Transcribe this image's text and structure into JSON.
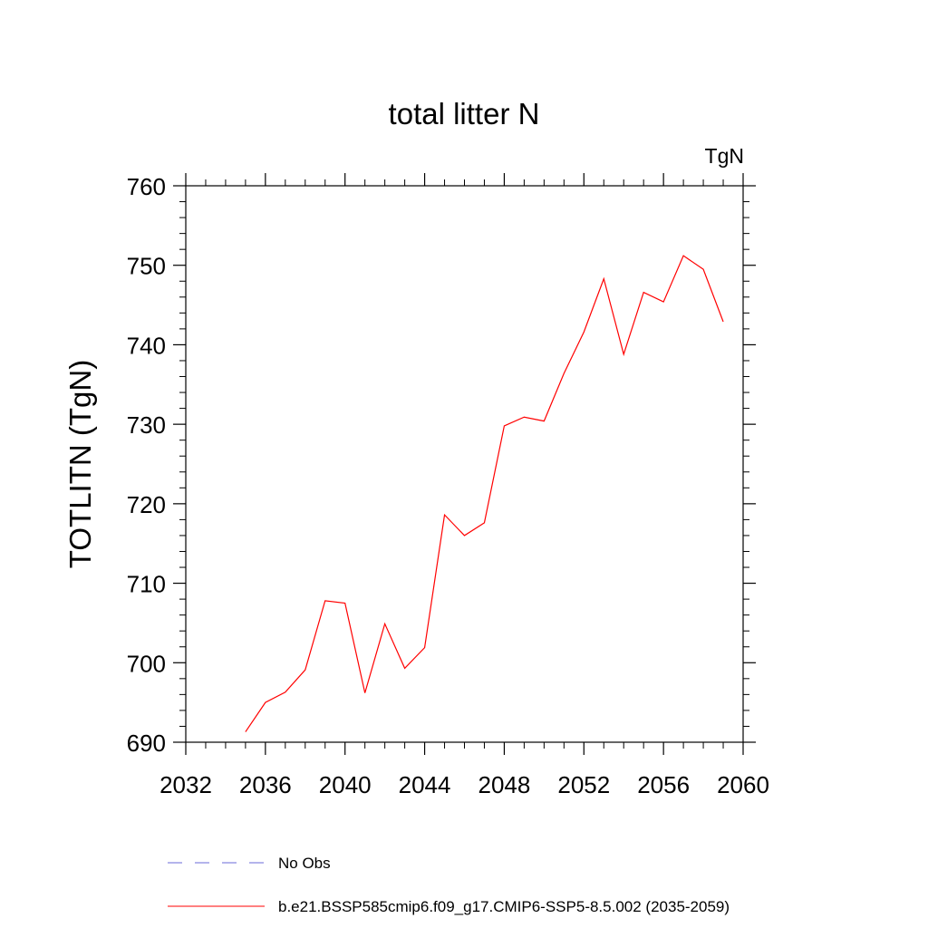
{
  "chart_data": {
    "type": "line",
    "title": "total litter N",
    "units_label": "TgN",
    "ylabel": "TOTLITN  (TgN)",
    "xlabel": "",
    "xlim": [
      2032,
      2060
    ],
    "ylim": [
      690,
      760
    ],
    "x_ticks": [
      2032,
      2036,
      2040,
      2044,
      2048,
      2052,
      2056,
      2060
    ],
    "y_ticks": [
      690,
      700,
      710,
      720,
      730,
      740,
      750,
      760
    ],
    "x_tick_labels": [
      "2032",
      "2036",
      "2040",
      "2044",
      "2048",
      "2052",
      "2056",
      "2060"
    ],
    "y_tick_labels": [
      "690",
      "700",
      "710",
      "720",
      "730",
      "740",
      "750",
      "760"
    ],
    "grid": false,
    "legend_position": "bottom",
    "series": [
      {
        "name": "b.e21.BSSP585cmip6.f09_g17.CMIP6-SSP5-8.5.002 (2035-2059)",
        "color": "#ff0000",
        "x": [
          2035,
          2036,
          2037,
          2038,
          2039,
          2040,
          2041,
          2042,
          2043,
          2044,
          2045,
          2046,
          2047,
          2048,
          2049,
          2050,
          2051,
          2052,
          2053,
          2054,
          2055,
          2056,
          2057,
          2058,
          2059
        ],
        "values": [
          691.3,
          695.0,
          696.3,
          699.1,
          707.8,
          707.5,
          696.2,
          704.9,
          699.3,
          701.9,
          718.6,
          716.0,
          717.6,
          729.8,
          730.9,
          730.4,
          736.4,
          741.6,
          748.3,
          738.8,
          746.6,
          745.4,
          751.2,
          749.5,
          742.9
        ]
      }
    ],
    "legend": [
      {
        "label": "No Obs",
        "color": "#6a6ad8",
        "style": "dashed"
      },
      {
        "label": "b.e21.BSSP585cmip6.f09_g17.CMIP6-SSP5-8.5.002 (2035-2059)",
        "color": "#ff0000",
        "style": "solid"
      }
    ]
  }
}
